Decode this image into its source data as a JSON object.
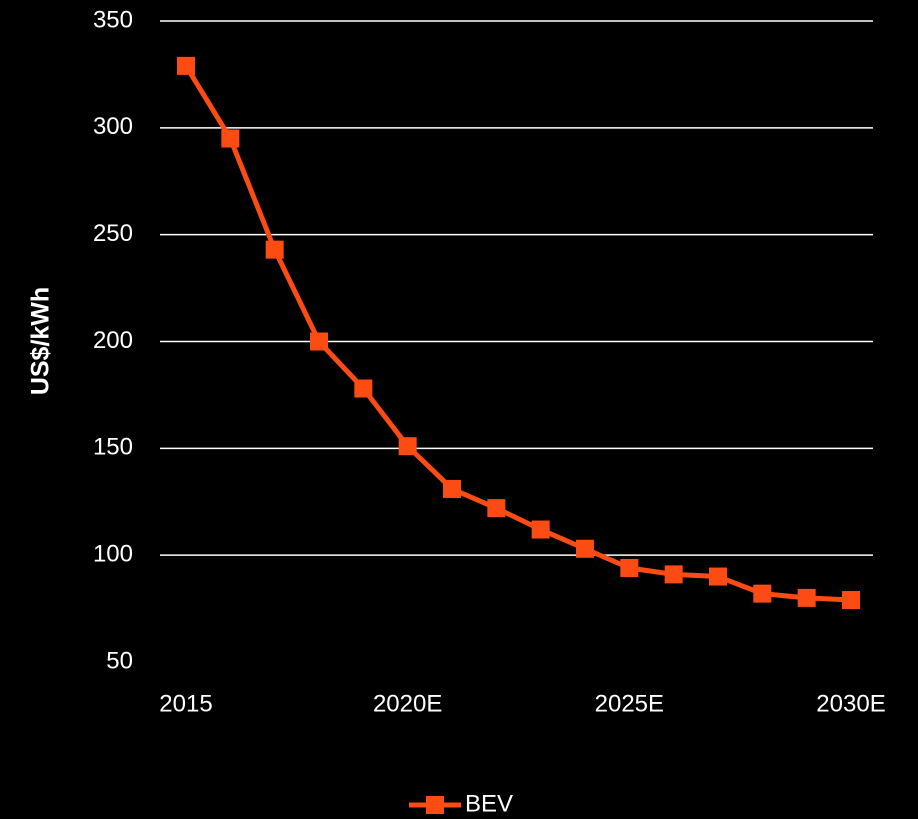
{
  "chart_data": {
    "type": "line",
    "y_label": "US$/kWh",
    "categories": [
      "2015",
      null,
      null,
      null,
      null,
      "2020E",
      null,
      null,
      null,
      null,
      "2025E",
      null,
      null,
      null,
      null,
      "2030E"
    ],
    "series": [
      {
        "name": "BEV",
        "color": "#fc4c14",
        "values": [
          329,
          295,
          243,
          200,
          178,
          151,
          131,
          122,
          112,
          103,
          94,
          91,
          90,
          82,
          80,
          79
        ]
      }
    ],
    "ylim": [
      50,
      350
    ],
    "yticks": [
      50,
      100,
      150,
      200,
      250,
      300,
      350
    ],
    "grid": true,
    "legend": "bottom"
  }
}
